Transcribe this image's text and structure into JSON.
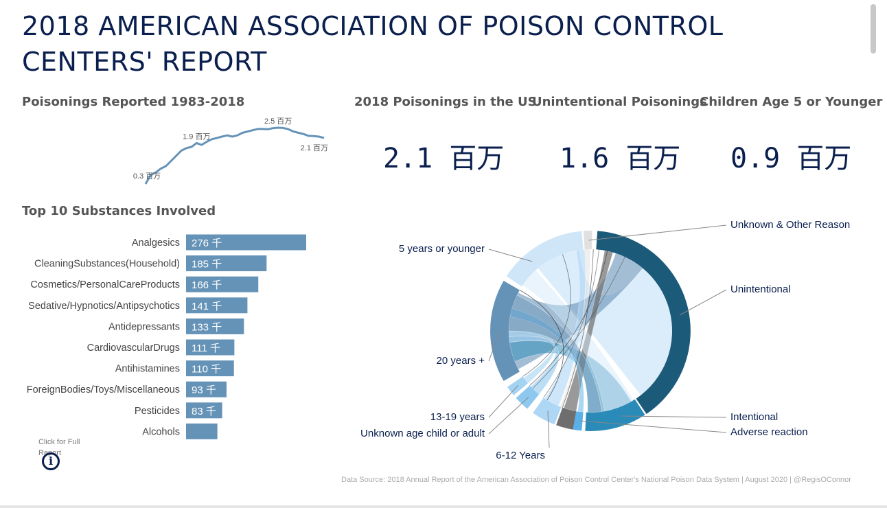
{
  "title": "2018 AMERICAN ASSOCIATION OF POISON CONTROL CENTERS' REPORT",
  "kpis": [
    {
      "label": "2018 Poisonings in the US",
      "value": "2.1 百万"
    },
    {
      "label": "Unintentional Poisonings",
      "value": "1.6 百万"
    },
    {
      "label": "Children Age 5 or Younger",
      "value": "0.9 百万"
    }
  ],
  "info": {
    "label": "Click for Full Report",
    "icon": "info-icon"
  },
  "source": "Data Source: 2018 Annual Report of the American Association of Poison Control Center's National Poison Data System | August 2020 | @RegisOConnor",
  "colors": {
    "title": "#0a1f4e",
    "bar": "#6593b8",
    "line": "#6593b8"
  },
  "chart_data": [
    {
      "type": "line",
      "title": "Poisonings Reported 1983-2018",
      "x": [
        1983,
        1984,
        1985,
        1986,
        1987,
        1988,
        1989,
        1990,
        1991,
        1992,
        1993,
        1994,
        1995,
        1996,
        1997,
        1998,
        1999,
        2000,
        2001,
        2002,
        2003,
        2004,
        2005,
        2006,
        2007,
        2008,
        2009,
        2010,
        2011,
        2012,
        2013,
        2014,
        2015,
        2016,
        2017,
        2018
      ],
      "values": [
        0.3,
        0.65,
        0.75,
        0.9,
        1.0,
        1.2,
        1.4,
        1.6,
        1.7,
        1.75,
        1.9,
        1.83,
        1.95,
        2.05,
        2.1,
        2.15,
        2.2,
        2.15,
        2.2,
        2.3,
        2.35,
        2.4,
        2.45,
        2.45,
        2.44,
        2.48,
        2.5,
        2.49,
        2.44,
        2.35,
        2.3,
        2.25,
        2.18,
        2.17,
        2.15,
        2.1
      ],
      "annotations": [
        {
          "x": 1983,
          "y": 0.3,
          "text": "0.3 百万"
        },
        {
          "x": 1993,
          "y": 1.9,
          "text": "1.9 百万"
        },
        {
          "x": 2009,
          "y": 2.5,
          "text": "2.5 百万"
        },
        {
          "x": 2018,
          "y": 2.1,
          "text": "2.1 百万"
        }
      ]
    },
    {
      "type": "bar",
      "orientation": "horizontal",
      "title": "Top 10 Substances Involved",
      "categories": [
        "Analgesics",
        "CleaningSubstances(Household)",
        "Cosmetics/PersonalCareProducts",
        "Sedative/Hypnotics/Antipsychotics",
        "Antidepressants",
        "CardiovascularDrugs",
        "Antihistamines",
        "ForeignBodies/Toys/Miscellaneous",
        "Pesticides",
        "Alcohols"
      ],
      "values": [
        276,
        185,
        166,
        141,
        133,
        111,
        110,
        93,
        83,
        72
      ],
      "labels": [
        "276 千",
        "185 千",
        "166 千",
        "141 千",
        "133 千",
        "111 千",
        "110 千",
        "93 千",
        "83 千",
        ""
      ]
    },
    {
      "type": "chord",
      "groups": [
        {
          "name": "Unknown & Other Reason",
          "color": "#e0e0e0"
        },
        {
          "name": "Unintentional",
          "color": "#1c5a7a"
        },
        {
          "name": "Intentional",
          "color": "#2a8ab8"
        },
        {
          "name": "Adverse reaction",
          "color": "#5ab0e8"
        },
        {
          "name": "",
          "color": "#6e6e6e"
        },
        {
          "name": "6-12 Years",
          "color": "#aed6f5"
        },
        {
          "name": "Unknown age child or adult",
          "color": "#8ec8ef"
        },
        {
          "name": "13-19 years",
          "color": "#a4d2f2"
        },
        {
          "name": "20 years +",
          "color": "#6593b8"
        },
        {
          "name": "5 years or younger",
          "color": "#cfe6f9"
        }
      ]
    }
  ]
}
